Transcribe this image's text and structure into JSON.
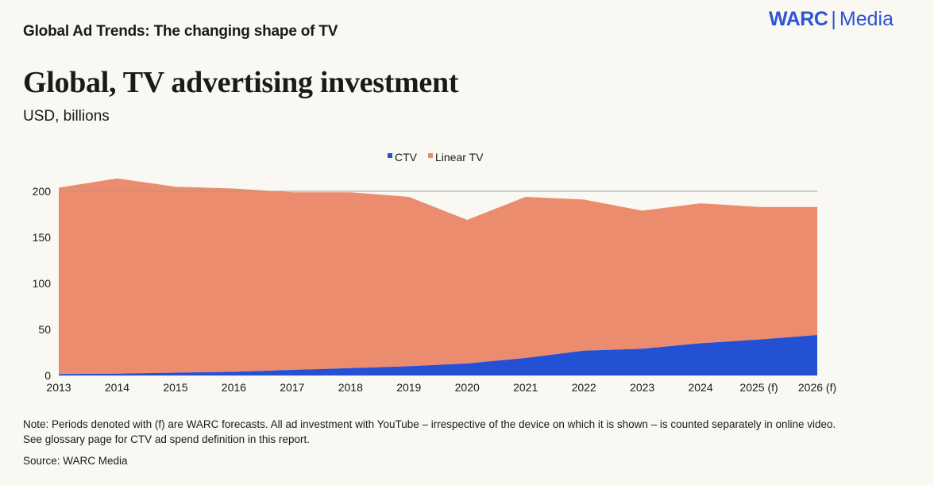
{
  "header": {
    "kicker": "Global Ad Trends: The changing shape of TV",
    "logo_brand": "WARC",
    "logo_separator": "|",
    "logo_product": "Media",
    "logo_color": "#2d55d6"
  },
  "footer": {
    "note": "Note: Periods denoted with (f) are WARC forecasts. All ad investment with YouTube – irrespective of the device on which it is shown – is counted separately in online video. See glossary page for CTV ad spend definition in this report.",
    "source": "Source: WARC Media"
  },
  "chart_data": {
    "type": "area",
    "stacked": true,
    "title": "Global, TV advertising investment",
    "subtitle": "USD, billions",
    "xlabel": "",
    "ylabel": "",
    "ylim": [
      0,
      200
    ],
    "yticks": [
      0,
      50,
      100,
      150,
      200
    ],
    "grid": true,
    "legend_position": "top-center",
    "categories": [
      "2013",
      "2014",
      "2015",
      "2016",
      "2017",
      "2018",
      "2019",
      "2020",
      "2021",
      "2022",
      "2023",
      "2024",
      "2025 (f)",
      "2026 (f)"
    ],
    "series": [
      {
        "name": "CTV",
        "color": "#2450d3",
        "values": [
          1.5,
          2,
          3,
          4,
          6,
          8,
          10,
          13,
          19,
          27,
          29,
          35,
          39,
          44
        ]
      },
      {
        "name": "Linear TV",
        "color": "#eb8c6f",
        "values": [
          202.5,
          212,
          202,
          199,
          193,
          191,
          184,
          156,
          175,
          164,
          150,
          152,
          144,
          139
        ]
      }
    ]
  }
}
